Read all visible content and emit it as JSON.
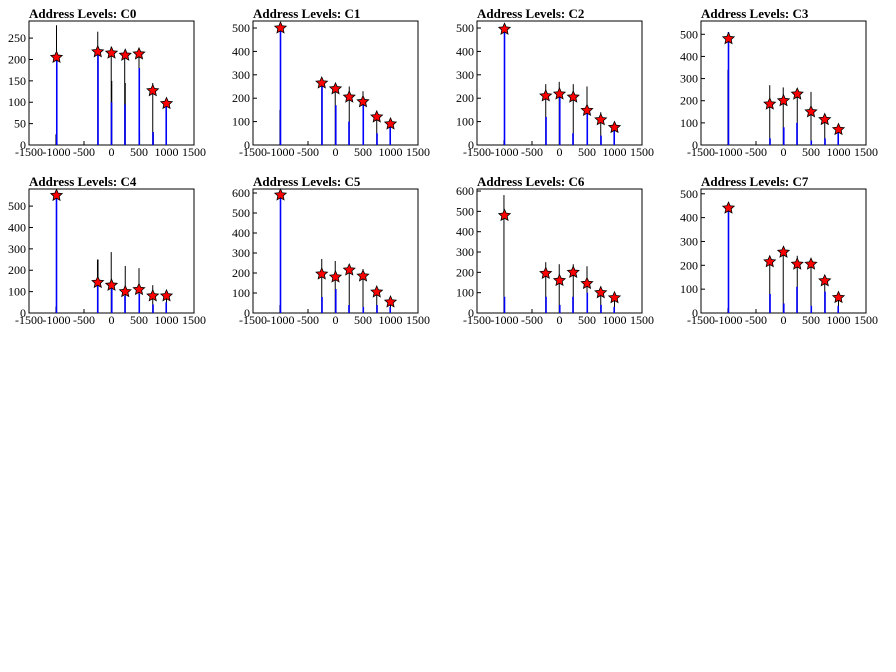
{
  "colors": {
    "black_hist": "#000000",
    "blue_hist": "#0000ff",
    "marker_fill": "#ff0000",
    "marker_stroke": "#000000"
  },
  "chart_data": [
    {
      "type": "bar",
      "title": "Address Levels: C0",
      "xlim": [
        -1500,
        1500
      ],
      "ylim": [
        0,
        290
      ],
      "xticks": [
        -1500,
        -1000,
        -500,
        0,
        500,
        1000,
        1500
      ],
      "yticks": [
        0,
        50,
        100,
        150,
        200,
        250
      ],
      "black_bars": [
        {
          "x": -1000,
          "h": 280
        },
        {
          "x": -1010,
          "h": 25
        },
        {
          "x": -250,
          "h": 265
        },
        {
          "x": -5,
          "h": 230
        },
        {
          "x": 5,
          "h": 150
        },
        {
          "x": 240,
          "h": 215
        },
        {
          "x": 250,
          "h": 145
        },
        {
          "x": 500,
          "h": 220
        },
        {
          "x": 510,
          "h": 30
        },
        {
          "x": 750,
          "h": 145
        },
        {
          "x": 760,
          "h": 30
        },
        {
          "x": 1000,
          "h": 100
        }
      ],
      "blue_bars": [
        {
          "x": -995,
          "h": 200
        },
        {
          "x": -245,
          "h": 215
        },
        {
          "x": 0,
          "h": 100
        },
        {
          "x": 245,
          "h": 95
        },
        {
          "x": 505,
          "h": 180
        },
        {
          "x": 755,
          "h": 30
        },
        {
          "x": 995,
          "h": 90
        }
      ],
      "markers": [
        {
          "x": -1000,
          "y": 205
        },
        {
          "x": -250,
          "y": 218
        },
        {
          "x": 0,
          "y": 215
        },
        {
          "x": 250,
          "y": 210
        },
        {
          "x": 500,
          "y": 213
        },
        {
          "x": 750,
          "y": 127
        },
        {
          "x": 1000,
          "y": 97
        }
      ]
    },
    {
      "type": "bar",
      "title": "Address Levels: C1",
      "xlim": [
        -1500,
        1500
      ],
      "ylim": [
        0,
        530
      ],
      "xticks": [
        -1500,
        -1000,
        -500,
        0,
        500,
        1000,
        1500
      ],
      "yticks": [
        0,
        100,
        200,
        300,
        400,
        500
      ],
      "black_bars": [
        {
          "x": -1010,
          "h": 150
        },
        {
          "x": -250,
          "h": 270
        },
        {
          "x": -5,
          "h": 260
        },
        {
          "x": 250,
          "h": 250
        },
        {
          "x": 500,
          "h": 230
        },
        {
          "x": 750,
          "h": 140
        },
        {
          "x": 1000,
          "h": 110
        }
      ],
      "blue_bars": [
        {
          "x": -1000,
          "h": 500
        },
        {
          "x": -245,
          "h": 250
        },
        {
          "x": 5,
          "h": 170
        },
        {
          "x": 245,
          "h": 100
        },
        {
          "x": 505,
          "h": 180
        },
        {
          "x": 755,
          "h": 50
        },
        {
          "x": 995,
          "h": 90
        }
      ],
      "markers": [
        {
          "x": -1000,
          "y": 500
        },
        {
          "x": -250,
          "y": 265
        },
        {
          "x": 0,
          "y": 240
        },
        {
          "x": 250,
          "y": 205
        },
        {
          "x": 500,
          "y": 185
        },
        {
          "x": 750,
          "y": 120
        },
        {
          "x": 1000,
          "y": 90
        }
      ]
    },
    {
      "type": "bar",
      "title": "Address Levels: C2",
      "xlim": [
        -1500,
        1500
      ],
      "ylim": [
        0,
        530
      ],
      "xticks": [
        -1500,
        -1000,
        -500,
        0,
        500,
        1000,
        1500
      ],
      "yticks": [
        0,
        100,
        200,
        300,
        400,
        500
      ],
      "black_bars": [
        {
          "x": -1010,
          "h": 20
        },
        {
          "x": -250,
          "h": 260
        },
        {
          "x": -5,
          "h": 270
        },
        {
          "x": 250,
          "h": 260
        },
        {
          "x": 500,
          "h": 250
        },
        {
          "x": 750,
          "h": 140
        },
        {
          "x": 1000,
          "h": 90
        }
      ],
      "blue_bars": [
        {
          "x": -1000,
          "h": 500
        },
        {
          "x": -245,
          "h": 120
        },
        {
          "x": 5,
          "h": 210
        },
        {
          "x": 245,
          "h": 50
        },
        {
          "x": 505,
          "h": 160
        },
        {
          "x": 755,
          "h": 40
        },
        {
          "x": 995,
          "h": 60
        }
      ],
      "markers": [
        {
          "x": -1000,
          "y": 495
        },
        {
          "x": -250,
          "y": 210
        },
        {
          "x": 0,
          "y": 218
        },
        {
          "x": 250,
          "y": 205
        },
        {
          "x": 500,
          "y": 148
        },
        {
          "x": 750,
          "y": 108
        },
        {
          "x": 1000,
          "y": 75
        }
      ]
    },
    {
      "type": "bar",
      "title": "Address Levels: C3",
      "xlim": [
        -1500,
        1500
      ],
      "ylim": [
        0,
        560
      ],
      "xticks": [
        -1500,
        -1000,
        -500,
        0,
        500,
        1000,
        1500
      ],
      "yticks": [
        0,
        100,
        200,
        300,
        400,
        500
      ],
      "black_bars": [
        {
          "x": -1010,
          "h": 340
        },
        {
          "x": -250,
          "h": 270
        },
        {
          "x": -5,
          "h": 260
        },
        {
          "x": 250,
          "h": 250
        },
        {
          "x": 500,
          "h": 240
        },
        {
          "x": 750,
          "h": 140
        },
        {
          "x": 1000,
          "h": 90
        }
      ],
      "blue_bars": [
        {
          "x": -1000,
          "h": 510
        },
        {
          "x": -245,
          "h": 30
        },
        {
          "x": 5,
          "h": 80
        },
        {
          "x": 245,
          "h": 100
        },
        {
          "x": 505,
          "h": 20
        },
        {
          "x": 755,
          "h": 30
        },
        {
          "x": 995,
          "h": 60
        }
      ],
      "markers": [
        {
          "x": -1000,
          "y": 480
        },
        {
          "x": -250,
          "y": 185
        },
        {
          "x": 0,
          "y": 200
        },
        {
          "x": 250,
          "y": 230
        },
        {
          "x": 500,
          "y": 150
        },
        {
          "x": 750,
          "y": 115
        },
        {
          "x": 1000,
          "y": 70
        }
      ]
    },
    {
      "type": "bar",
      "title": "Address Levels: C4",
      "xlim": [
        -1500,
        1500
      ],
      "ylim": [
        0,
        580
      ],
      "xticks": [
        -1500,
        -1000,
        -500,
        0,
        500,
        1000,
        1500
      ],
      "yticks": [
        0,
        100,
        200,
        300,
        400,
        500
      ],
      "black_bars": [
        {
          "x": -1010,
          "h": 30
        },
        {
          "x": -255,
          "h": 250
        },
        {
          "x": -245,
          "h": 250
        },
        {
          "x": -5,
          "h": 285
        },
        {
          "x": 250,
          "h": 220
        },
        {
          "x": 500,
          "h": 210
        },
        {
          "x": 750,
          "h": 130
        },
        {
          "x": 1000,
          "h": 80
        }
      ],
      "blue_bars": [
        {
          "x": -1000,
          "h": 560
        },
        {
          "x": -250,
          "h": 150
        },
        {
          "x": 5,
          "h": 140
        },
        {
          "x": 245,
          "h": 80
        },
        {
          "x": 505,
          "h": 90
        },
        {
          "x": 755,
          "h": 40
        },
        {
          "x": 995,
          "h": 50
        }
      ],
      "markers": [
        {
          "x": -1000,
          "y": 550
        },
        {
          "x": -250,
          "y": 143
        },
        {
          "x": 0,
          "y": 130
        },
        {
          "x": 250,
          "y": 100
        },
        {
          "x": 500,
          "y": 110
        },
        {
          "x": 750,
          "y": 80
        },
        {
          "x": 1000,
          "y": 80
        }
      ]
    },
    {
      "type": "bar",
      "title": "Address Levels: C5",
      "xlim": [
        -1500,
        1500
      ],
      "ylim": [
        0,
        620
      ],
      "xticks": [
        -1500,
        -1000,
        -500,
        0,
        500,
        1000,
        1500
      ],
      "yticks": [
        0,
        100,
        200,
        300,
        400,
        500,
        600
      ],
      "black_bars": [
        {
          "x": -1010,
          "h": 40
        },
        {
          "x": -250,
          "h": 270
        },
        {
          "x": -5,
          "h": 260
        },
        {
          "x": 250,
          "h": 240
        },
        {
          "x": 500,
          "h": 220
        },
        {
          "x": 750,
          "h": 120
        },
        {
          "x": 1000,
          "h": 80
        }
      ],
      "blue_bars": [
        {
          "x": -1000,
          "h": 600
        },
        {
          "x": -245,
          "h": 80
        },
        {
          "x": 5,
          "h": 120
        },
        {
          "x": 245,
          "h": 40
        },
        {
          "x": 505,
          "h": 30
        },
        {
          "x": 755,
          "h": 40
        },
        {
          "x": 995,
          "h": 30
        }
      ],
      "markers": [
        {
          "x": -1000,
          "y": 590
        },
        {
          "x": -250,
          "y": 195
        },
        {
          "x": 0,
          "y": 180
        },
        {
          "x": 250,
          "y": 215
        },
        {
          "x": 500,
          "y": 185
        },
        {
          "x": 750,
          "y": 105
        },
        {
          "x": 1000,
          "y": 55
        }
      ]
    },
    {
      "type": "bar",
      "title": "Address Levels: C6",
      "xlim": [
        -1500,
        1500
      ],
      "ylim": [
        0,
        610
      ],
      "xticks": [
        -1500,
        -1000,
        -500,
        0,
        500,
        1000,
        1500
      ],
      "yticks": [
        0,
        100,
        200,
        300,
        400,
        500,
        600
      ],
      "black_bars": [
        {
          "x": -1010,
          "h": 580
        },
        {
          "x": -250,
          "h": 250
        },
        {
          "x": -5,
          "h": 240
        },
        {
          "x": 250,
          "h": 240
        },
        {
          "x": 500,
          "h": 230
        },
        {
          "x": 750,
          "h": 130
        },
        {
          "x": 1000,
          "h": 80
        }
      ],
      "blue_bars": [
        {
          "x": -1000,
          "h": 80
        },
        {
          "x": -245,
          "h": 80
        },
        {
          "x": 5,
          "h": 40
        },
        {
          "x": 245,
          "h": 80
        },
        {
          "x": 505,
          "h": 100
        },
        {
          "x": 755,
          "h": 40
        },
        {
          "x": 995,
          "h": 30
        }
      ],
      "markers": [
        {
          "x": -1000,
          "y": 480
        },
        {
          "x": -250,
          "y": 195
        },
        {
          "x": 0,
          "y": 160
        },
        {
          "x": 250,
          "y": 200
        },
        {
          "x": 500,
          "y": 145
        },
        {
          "x": 750,
          "y": 100
        },
        {
          "x": 1000,
          "y": 75
        }
      ]
    },
    {
      "type": "bar",
      "title": "Address Levels: C7",
      "xlim": [
        -1500,
        1500
      ],
      "ylim": [
        0,
        520
      ],
      "xticks": [
        -1500,
        -1000,
        -500,
        0,
        500,
        1000,
        1500
      ],
      "yticks": [
        0,
        100,
        200,
        300,
        400,
        500
      ],
      "black_bars": [
        {
          "x": -1010,
          "h": 20
        },
        {
          "x": -250,
          "h": 240
        },
        {
          "x": -5,
          "h": 250
        },
        {
          "x": 250,
          "h": 240
        },
        {
          "x": 500,
          "h": 220
        },
        {
          "x": 750,
          "h": 140
        },
        {
          "x": 1000,
          "h": 80
        }
      ],
      "blue_bars": [
        {
          "x": -1000,
          "h": 460
        },
        {
          "x": -245,
          "h": 80
        },
        {
          "x": 5,
          "h": 40
        },
        {
          "x": 245,
          "h": 110
        },
        {
          "x": 505,
          "h": 30
        },
        {
          "x": 755,
          "h": 90
        },
        {
          "x": 995,
          "h": 30
        }
      ],
      "markers": [
        {
          "x": -1000,
          "y": 440
        },
        {
          "x": -250,
          "y": 215
        },
        {
          "x": 0,
          "y": 255
        },
        {
          "x": 250,
          "y": 205
        },
        {
          "x": 500,
          "y": 205
        },
        {
          "x": 750,
          "y": 135
        },
        {
          "x": 1000,
          "y": 65
        }
      ]
    }
  ]
}
